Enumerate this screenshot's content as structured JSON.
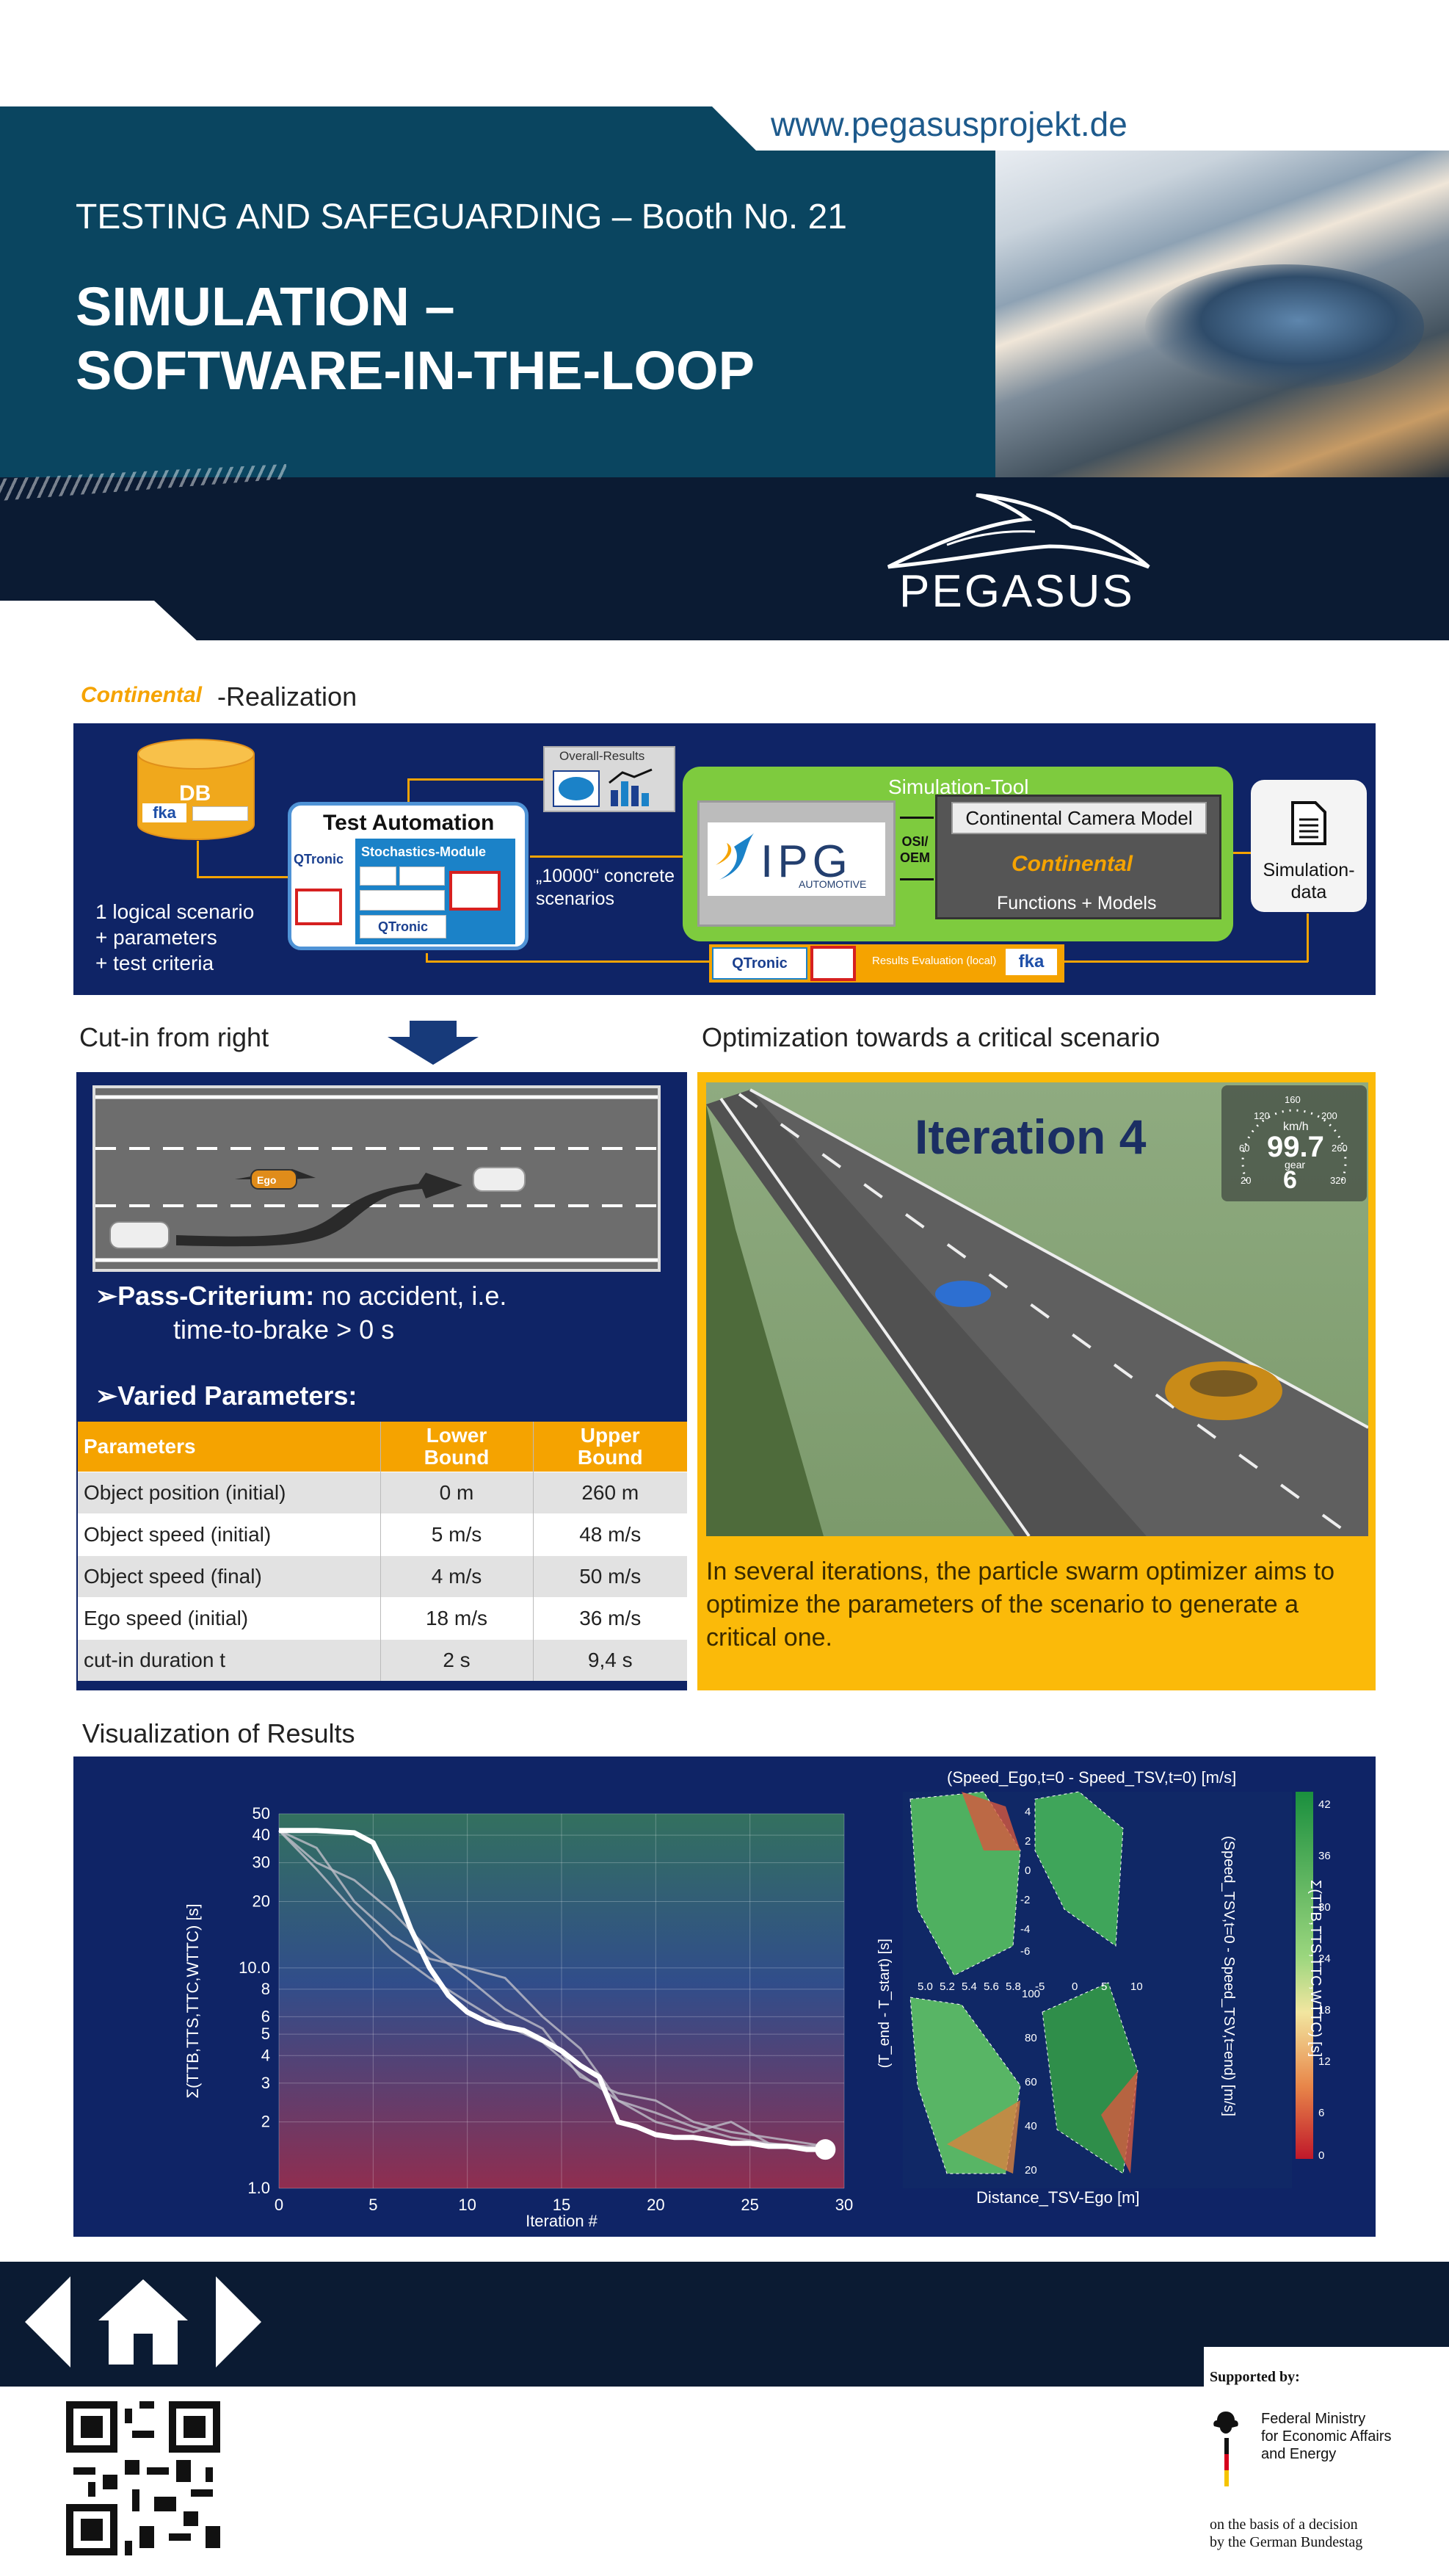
{
  "header": {
    "url": "www.pegasusprojekt.de",
    "booth": "TESTING AND SAFEGUARDING – Booth No. 21",
    "title_line1": "SIMULATION –",
    "title_line2": "SOFTWARE-IN-THE-LOOP",
    "logo_text": "PEGASUS"
  },
  "realization": {
    "logo": "Continental",
    "label": "-Realization"
  },
  "architecture": {
    "db_label": "DB",
    "fka": "fka",
    "logical_lines": [
      "1 logical scenario",
      "+ parameters",
      "+ test criteria"
    ],
    "test_automation": "Test Automation",
    "qtronic": "QTronic",
    "stochastics": "Stochastics-Module",
    "concrete_line1": "„10000“ concrete",
    "concrete_line2": "scenarios",
    "overall_results": "Overall-Results",
    "simulation_tool": "Simulation-Tool",
    "ipg": "IPG",
    "ipg_sub": "AUTOMOTIVE",
    "osi": "OSI/",
    "oem": "OEM",
    "camera_model": "Continental Camera Model",
    "continental": "Continental",
    "functions_models": "Functions + Models",
    "sim_data_line1": "Simulation-",
    "sim_data_line2": "data",
    "results_eval": "Results Evaluation (local)",
    "results_fka": "fka",
    "results_qtronic": "QTronic"
  },
  "cut_in": {
    "label": "Cut-in from right",
    "ego_label": "Ego",
    "pass_bold": "Pass-Criterium:",
    "pass_text": " no accident, i.e.",
    "pass_line2": "time-to-brake > 0 s",
    "varied": "Varied Parameters:"
  },
  "param_table": {
    "headers": [
      "Parameters",
      "Lower Bound",
      "Upper Bound"
    ],
    "rows": [
      [
        "Object position (initial)",
        "0 m",
        "260 m"
      ],
      [
        "Object speed (initial)",
        "5 m/s",
        "48 m/s"
      ],
      [
        "Object speed (final)",
        "4 m/s",
        "50 m/s"
      ],
      [
        "Ego speed (initial)",
        "18 m/s",
        "36 m/s"
      ],
      [
        "cut-in duration t",
        "2 s",
        "9,4 s"
      ]
    ]
  },
  "optimization": {
    "label": "Optimization towards a critical scenario",
    "iteration": "Iteration 4",
    "speed": "99.7",
    "gear": "6",
    "kmh": "km/h",
    "gear_label": "gear",
    "description": "In several iterations, the particle swarm optimizer aims to optimize the parameters of the scenario to generate a critical one."
  },
  "visualization": {
    "label": "Visualization of Results",
    "heat_title": "(Speed_Ego,t=0 - Speed_TSV,t=0) [m/s]",
    "heat_xlabel": "Distance_TSV-Ego [m]",
    "heat_ylabel": "(T_end - T_start) [s]",
    "heat_y2label": "(Speed_TSV,t=0 - Speed_TSV,t=end) [m/s]",
    "heat_cb_label": "Σ(TTB,TTS,TTC,WTTC) [s]",
    "heat_cb_ticks": [
      "42",
      "36",
      "30",
      "24",
      "18",
      "12",
      "6",
      "0"
    ]
  },
  "chart_data": {
    "type": "line",
    "xlabel": "Iteration #",
    "ylabel": "Σ(TTB,TTS,TTC,WTTC) [s]",
    "xlim": [
      0,
      30
    ],
    "ylim": [
      1.0,
      50
    ],
    "yscale": "log",
    "xticks": [
      "0",
      "5",
      "10",
      "15",
      "20",
      "25",
      "30"
    ],
    "yticks": [
      "1.0",
      "2",
      "3",
      "4",
      "5",
      "6",
      "8",
      "10.0",
      "20",
      "30",
      "40",
      "50"
    ],
    "series": [
      {
        "highlight": true,
        "x": [
          0,
          2,
          4,
          5,
          6,
          7,
          8,
          9,
          10,
          11,
          12,
          13,
          14,
          15,
          16,
          17,
          18,
          19,
          20,
          21,
          22,
          23,
          24,
          25,
          26,
          27,
          28,
          29
        ],
        "y": [
          42,
          42,
          41,
          37,
          25,
          15,
          10,
          7.5,
          6.3,
          5.7,
          5.4,
          5.2,
          4.7,
          4.2,
          3.6,
          3.2,
          2.0,
          1.9,
          1.75,
          1.7,
          1.7,
          1.65,
          1.6,
          1.6,
          1.55,
          1.55,
          1.5,
          1.5
        ]
      },
      {
        "highlight": false,
        "x": [
          0,
          2,
          4,
          6,
          8,
          10,
          12,
          14,
          16,
          18,
          20,
          22,
          24,
          26,
          28,
          29
        ],
        "y": [
          42,
          30,
          25,
          18,
          12,
          9,
          6.5,
          5.3,
          3.2,
          2.7,
          2.5,
          2.0,
          1.8,
          1.7,
          1.6,
          1.55
        ]
      },
      {
        "highlight": false,
        "x": [
          0,
          2,
          4,
          6,
          8,
          10,
          12,
          14,
          16,
          18,
          20,
          22,
          24,
          26,
          28,
          29
        ],
        "y": [
          42,
          35,
          20,
          14,
          11,
          10,
          9,
          6.0,
          4.3,
          2.5,
          2.2,
          1.9,
          1.7,
          1.6,
          1.55,
          1.55
        ]
      },
      {
        "highlight": false,
        "x": [
          0,
          2,
          4,
          6,
          8,
          10,
          12,
          14,
          16,
          18,
          20,
          22,
          24,
          26,
          28,
          29
        ],
        "y": [
          42,
          28,
          18,
          12,
          9,
          7,
          5.5,
          4.6,
          3.3,
          2.5,
          2.0,
          1.8,
          2.0,
          1.6,
          1.5,
          1.5
        ]
      }
    ]
  },
  "footer": {
    "supported": "Supported by:",
    "ministry_lines": [
      "Federal Ministry",
      "for Economic Affairs",
      "and Energy"
    ],
    "decision_lines": [
      "on the basis of a decision",
      "by the German Bundestag"
    ]
  },
  "colors": {
    "header": "#0a4560",
    "dark_band": "#0b1b33",
    "panel": "#0f2466",
    "orange": "#f5a300",
    "yellow": "#fbba09",
    "green": "#7ecb3e"
  }
}
